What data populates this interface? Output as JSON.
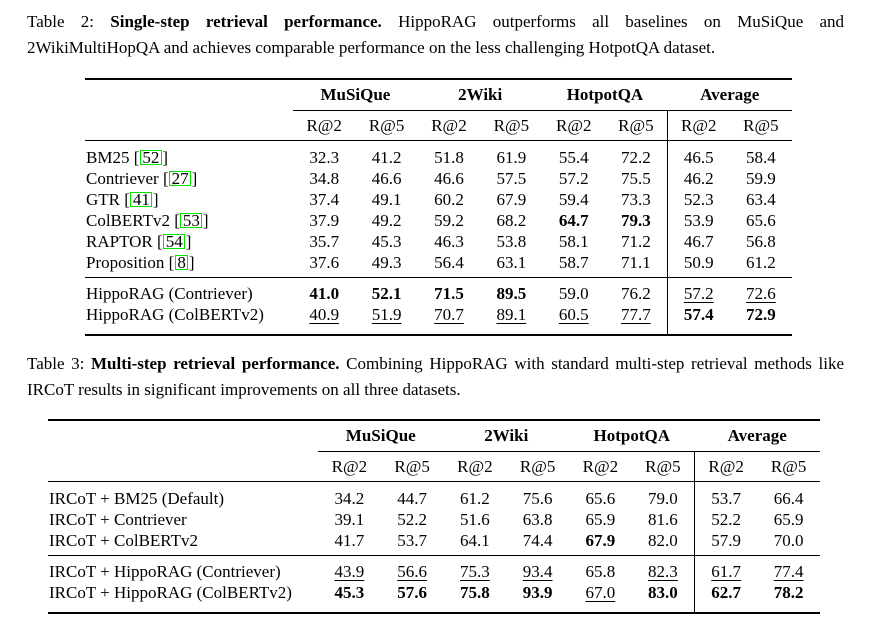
{
  "page": {
    "background": "#ffffff",
    "text_color": "#000000",
    "citation_box_color": "#00e400"
  },
  "tables": [
    {
      "caption": {
        "label": "Table 2:",
        "title_bold": "Single-step retrieval performance.",
        "text": "HippoRAG outperforms all baselines on MuSiQue and 2WikiMultiHopQA and achieves comparable performance on the less challenging HotpotQA dataset."
      },
      "column_groups": [
        "MuSiQue",
        "2Wiki",
        "HotpotQA",
        "Average"
      ],
      "metric_headers": [
        "R@2",
        "R@5",
        "R@2",
        "R@5",
        "R@2",
        "R@5",
        "R@2",
        "R@5"
      ],
      "rows": [
        {
          "label": "BM25",
          "citation": "52",
          "values": [
            "32.3",
            "41.2",
            "51.8",
            "61.9",
            "55.4",
            "72.2",
            "46.5",
            "58.4"
          ],
          "styles": [
            "",
            "",
            "",
            "",
            "",
            "",
            "",
            ""
          ]
        },
        {
          "label": "Contriever",
          "citation": "27",
          "values": [
            "34.8",
            "46.6",
            "46.6",
            "57.5",
            "57.2",
            "75.5",
            "46.2",
            "59.9"
          ],
          "styles": [
            "",
            "",
            "",
            "",
            "",
            "",
            "",
            ""
          ]
        },
        {
          "label": "GTR",
          "citation": "41",
          "values": [
            "37.4",
            "49.1",
            "60.2",
            "67.9",
            "59.4",
            "73.3",
            "52.3",
            "63.4"
          ],
          "styles": [
            "",
            "",
            "",
            "",
            "",
            "",
            "",
            ""
          ]
        },
        {
          "label": "ColBERTv2",
          "citation": "53",
          "values": [
            "37.9",
            "49.2",
            "59.2",
            "68.2",
            "64.7",
            "79.3",
            "53.9",
            "65.6"
          ],
          "styles": [
            "",
            "",
            "",
            "",
            "b",
            "b",
            "",
            ""
          ]
        },
        {
          "label": "RAPTOR",
          "citation": "54",
          "values": [
            "35.7",
            "45.3",
            "46.3",
            "53.8",
            "58.1",
            "71.2",
            "46.7",
            "56.8"
          ],
          "styles": [
            "",
            "",
            "",
            "",
            "",
            "",
            "",
            ""
          ]
        },
        {
          "label": "Proposition",
          "citation": "8",
          "values": [
            "37.6",
            "49.3",
            "56.4",
            "63.1",
            "58.7",
            "71.1",
            "50.9",
            "61.2"
          ],
          "styles": [
            "",
            "",
            "",
            "",
            "",
            "",
            "",
            ""
          ]
        }
      ],
      "highlight_rows": [
        {
          "label": "HippoRAG (Contriever)",
          "values": [
            "41.0",
            "52.1",
            "71.5",
            "89.5",
            "59.0",
            "76.2",
            "57.2",
            "72.6"
          ],
          "styles": [
            "b",
            "b",
            "b",
            "b",
            "",
            "",
            "u",
            "u"
          ]
        },
        {
          "label": "HippoRAG (ColBERTv2)",
          "values": [
            "40.9",
            "51.9",
            "70.7",
            "89.1",
            "60.5",
            "77.7",
            "57.4",
            "72.9"
          ],
          "styles": [
            "u",
            "u",
            "u",
            "u",
            "u",
            "u",
            "b",
            "b"
          ]
        }
      ]
    },
    {
      "caption": {
        "label": "Table 3:",
        "title_bold": "Multi-step retrieval performance.",
        "text": "Combining HippoRAG with standard multi-step retrieval methods like IRCoT results in significant improvements on all three datasets."
      },
      "column_groups": [
        "MuSiQue",
        "2Wiki",
        "HotpotQA",
        "Average"
      ],
      "metric_headers": [
        "R@2",
        "R@5",
        "R@2",
        "R@5",
        "R@2",
        "R@5",
        "R@2",
        "R@5"
      ],
      "rows": [
        {
          "label": "IRCoT + BM25 (Default)",
          "values": [
            "34.2",
            "44.7",
            "61.2",
            "75.6",
            "65.6",
            "79.0",
            "53.7",
            "66.4"
          ],
          "styles": [
            "",
            "",
            "",
            "",
            "",
            "",
            "",
            ""
          ]
        },
        {
          "label": "IRCoT + Contriever",
          "values": [
            "39.1",
            "52.2",
            "51.6",
            "63.8",
            "65.9",
            "81.6",
            "52.2",
            "65.9"
          ],
          "styles": [
            "",
            "",
            "",
            "",
            "",
            "",
            "",
            ""
          ]
        },
        {
          "label": "IRCoT + ColBERTv2",
          "values": [
            "41.7",
            "53.7",
            "64.1",
            "74.4",
            "67.9",
            "82.0",
            "57.9",
            "70.0"
          ],
          "styles": [
            "",
            "",
            "",
            "",
            "b",
            "",
            "",
            ""
          ]
        }
      ],
      "highlight_rows": [
        {
          "label": "IRCoT + HippoRAG (Contriever)",
          "values": [
            "43.9",
            "56.6",
            "75.3",
            "93.4",
            "65.8",
            "82.3",
            "61.7",
            "77.4"
          ],
          "styles": [
            "u",
            "u",
            "u",
            "u",
            "",
            "u",
            "u",
            "u"
          ]
        },
        {
          "label": "IRCoT + HippoRAG (ColBERTv2)",
          "values": [
            "45.3",
            "57.6",
            "75.8",
            "93.9",
            "67.0",
            "83.0",
            "62.7",
            "78.2"
          ],
          "styles": [
            "b",
            "b",
            "b",
            "b",
            "u",
            "b",
            "b",
            "b"
          ]
        }
      ]
    }
  ]
}
